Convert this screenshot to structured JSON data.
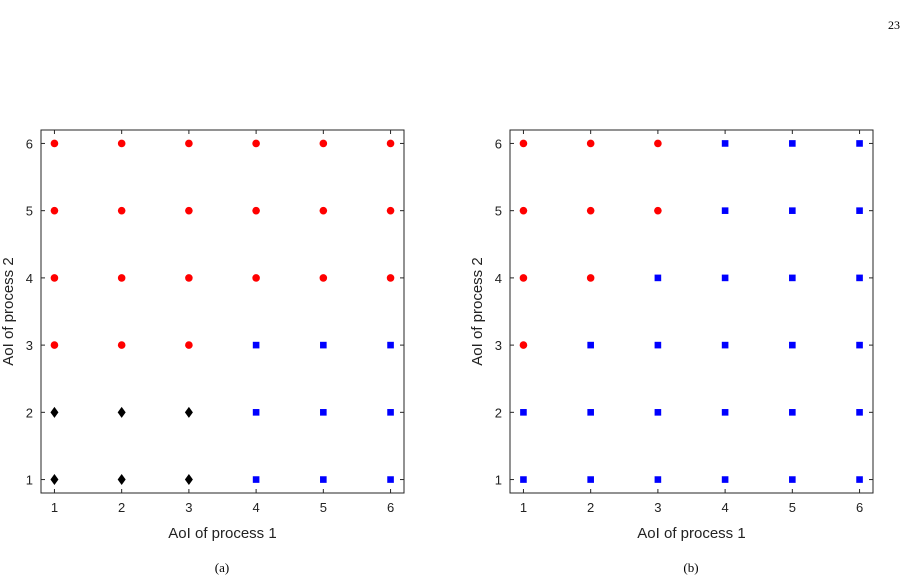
{
  "page_number": "23",
  "chart_data": [
    {
      "type": "scatter",
      "caption": "(a)",
      "xlabel": "AoI of process 1",
      "ylabel": "AoI of process 2",
      "xlim": [
        0.8,
        6.2
      ],
      "ylim": [
        0.8,
        6.2
      ],
      "xticks": [
        1,
        2,
        3,
        4,
        5,
        6
      ],
      "yticks": [
        1,
        2,
        3,
        4,
        5,
        6
      ],
      "grid": false,
      "series": [
        {
          "marker": "circle",
          "color": "#ff0000",
          "points": [
            [
              1,
              3
            ],
            [
              2,
              3
            ],
            [
              3,
              3
            ],
            [
              1,
              4
            ],
            [
              2,
              4
            ],
            [
              3,
              4
            ],
            [
              4,
              4
            ],
            [
              5,
              4
            ],
            [
              6,
              4
            ],
            [
              1,
              5
            ],
            [
              2,
              5
            ],
            [
              3,
              5
            ],
            [
              4,
              5
            ],
            [
              5,
              5
            ],
            [
              6,
              5
            ],
            [
              1,
              6
            ],
            [
              2,
              6
            ],
            [
              3,
              6
            ],
            [
              4,
              6
            ],
            [
              5,
              6
            ],
            [
              6,
              6
            ]
          ]
        },
        {
          "marker": "square",
          "color": "#0000ff",
          "points": [
            [
              4,
              1
            ],
            [
              5,
              1
            ],
            [
              6,
              1
            ],
            [
              4,
              2
            ],
            [
              5,
              2
            ],
            [
              6,
              2
            ],
            [
              4,
              3
            ],
            [
              5,
              3
            ],
            [
              6,
              3
            ]
          ]
        },
        {
          "marker": "diamond",
          "color": "#000000",
          "points": [
            [
              1,
              1
            ],
            [
              2,
              1
            ],
            [
              3,
              1
            ],
            [
              1,
              2
            ],
            [
              2,
              2
            ],
            [
              3,
              2
            ]
          ]
        }
      ]
    },
    {
      "type": "scatter",
      "caption": "(b)",
      "xlabel": "AoI of process 1",
      "ylabel": "AoI of process 2",
      "xlim": [
        0.8,
        6.2
      ],
      "ylim": [
        0.8,
        6.2
      ],
      "xticks": [
        1,
        2,
        3,
        4,
        5,
        6
      ],
      "yticks": [
        1,
        2,
        3,
        4,
        5,
        6
      ],
      "grid": false,
      "series": [
        {
          "marker": "circle",
          "color": "#ff0000",
          "points": [
            [
              1,
              3
            ],
            [
              1,
              4
            ],
            [
              2,
              4
            ],
            [
              1,
              5
            ],
            [
              2,
              5
            ],
            [
              3,
              5
            ],
            [
              1,
              6
            ],
            [
              2,
              6
            ],
            [
              3,
              6
            ]
          ]
        },
        {
          "marker": "square",
          "color": "#0000ff",
          "points": [
            [
              1,
              1
            ],
            [
              2,
              1
            ],
            [
              3,
              1
            ],
            [
              4,
              1
            ],
            [
              5,
              1
            ],
            [
              6,
              1
            ],
            [
              1,
              2
            ],
            [
              2,
              2
            ],
            [
              3,
              2
            ],
            [
              4,
              2
            ],
            [
              5,
              2
            ],
            [
              6,
              2
            ],
            [
              2,
              3
            ],
            [
              3,
              3
            ],
            [
              4,
              3
            ],
            [
              5,
              3
            ],
            [
              6,
              3
            ],
            [
              3,
              4
            ],
            [
              4,
              4
            ],
            [
              5,
              4
            ],
            [
              6,
              4
            ],
            [
              4,
              5
            ],
            [
              5,
              5
            ],
            [
              6,
              5
            ],
            [
              4,
              6
            ],
            [
              5,
              6
            ],
            [
              6,
              6
            ]
          ]
        }
      ]
    }
  ]
}
